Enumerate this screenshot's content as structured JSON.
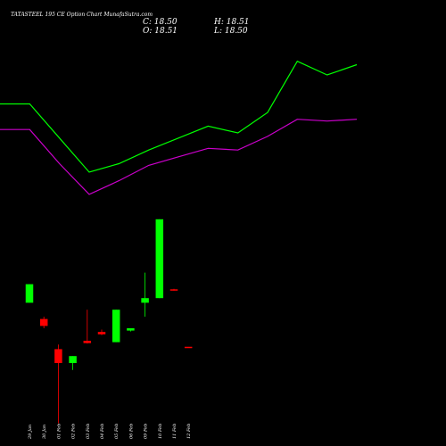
{
  "chart_data": {
    "type": "candlestick",
    "title": "TATASTEEL 195 CE Option  Chart MunafaSutra.com",
    "ohlc": {
      "C": "18.50",
      "H": "18.51",
      "O": "18.51",
      "L": "18.50"
    },
    "colors": {
      "background": "#000000",
      "up": "#00ff00",
      "down": "#ff0000",
      "upper_band": "#00ff00",
      "lower_band": "#cc00cc",
      "text": "#ffffff"
    },
    "x_labels": [
      "29 Jan",
      "30 Jan",
      "01 Feb",
      "02 Feb",
      "03 Feb",
      "04 Feb",
      "05 Feb",
      "06 Feb",
      "09 Feb",
      "10 Feb",
      "11 Feb",
      "12 Feb"
    ],
    "candles": [
      {
        "date": "29 Jan",
        "open": 28.0,
        "high": 32.0,
        "low": 28.0,
        "close": 32.0
      },
      {
        "date": "30 Jan",
        "open": 24.5,
        "high": 25.0,
        "low": 22.5,
        "close": 23.0
      },
      {
        "date": "01 Feb",
        "open": 18.0,
        "high": 19.0,
        "low": 2.0,
        "close": 15.0
      },
      {
        "date": "02 Feb",
        "open": 15.0,
        "high": 16.5,
        "low": 13.5,
        "close": 16.5
      },
      {
        "date": "03 Feb",
        "open": 19.8,
        "high": 26.5,
        "low": 19.2,
        "close": 19.3
      },
      {
        "date": "04 Feb",
        "open": 21.7,
        "high": 22.2,
        "low": 21.0,
        "close": 21.2
      },
      {
        "date": "05 Feb",
        "open": 19.5,
        "high": 26.5,
        "low": 19.5,
        "close": 26.5
      },
      {
        "date": "06 Feb",
        "open": 22.0,
        "high": 22.5,
        "low": 21.8,
        "close": 22.5
      },
      {
        "date": "09 Feb",
        "open": 28.0,
        "high": 34.5,
        "low": 25.0,
        "close": 29.0
      },
      {
        "date": "10 Feb",
        "open": 29.0,
        "high": 46.0,
        "low": 29.0,
        "close": 46.0
      },
      {
        "date": "11 Feb",
        "open": 30.9,
        "high": 31.0,
        "low": 30.6,
        "close": 30.7
      },
      {
        "date": "12 Feb",
        "open": 18.51,
        "high": 18.51,
        "low": 18.5,
        "close": 18.5
      }
    ],
    "upper_band": [
      105,
      105,
      85,
      65,
      70,
      78,
      85,
      92,
      88,
      100,
      130,
      122,
      128
    ],
    "lower_band": [
      90,
      90,
      70,
      52,
      60,
      69,
      74,
      79,
      78,
      86,
      96,
      95,
      96
    ],
    "band_ylim": [
      30,
      145
    ],
    "price_ylim": [
      0,
      50
    ]
  }
}
